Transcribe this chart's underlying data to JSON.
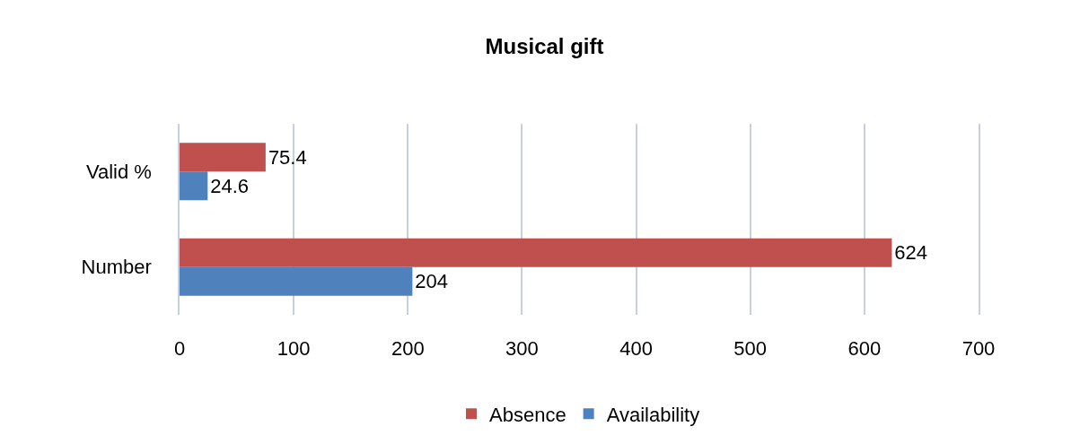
{
  "chart_data": {
    "type": "bar",
    "orientation": "horizontal",
    "title": "Musical gift",
    "categories": [
      "Valid %",
      "Number"
    ],
    "series": [
      {
        "name": "Absence",
        "color": "#c0504d",
        "values": [
          75.4,
          624
        ]
      },
      {
        "name": "Availability",
        "color": "#4f81bd",
        "values": [
          24.6,
          204
        ]
      }
    ],
    "xlim": [
      0,
      700
    ],
    "xticks": [
      0,
      100,
      200,
      300,
      400,
      500,
      600,
      700
    ],
    "grid": "x",
    "legend": "bottom",
    "data_labels": true
  }
}
